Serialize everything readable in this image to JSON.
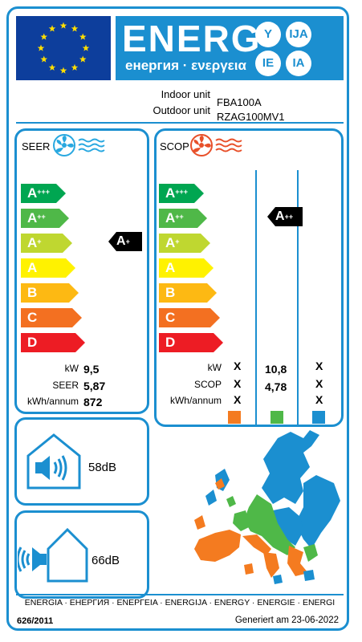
{
  "header": {
    "energy_word": "ENERG",
    "energy_sub": "енергия · ενεργεια",
    "badges": [
      "Y",
      "IJA",
      "IE",
      "IA"
    ]
  },
  "unit": {
    "indoor_label": "Indoor unit",
    "indoor_model": "FBA100A",
    "outdoor_label": "Outdoor unit",
    "outdoor_model": "RZAG100MV1"
  },
  "energy_classes": [
    {
      "label": "A",
      "sup": "+++",
      "color": "#00a651"
    },
    {
      "label": "A",
      "sup": "++",
      "color": "#4fb848"
    },
    {
      "label": "A",
      "sup": "+",
      "color": "#bfd730"
    },
    {
      "label": "A",
      "sup": "",
      "color": "#fff200"
    },
    {
      "label": "B",
      "sup": "",
      "color": "#fdb913"
    },
    {
      "label": "C",
      "sup": "",
      "color": "#f37021"
    },
    {
      "label": "D",
      "sup": "",
      "color": "#ed1c24"
    }
  ],
  "seer": {
    "title": "SEER",
    "rating": {
      "label": "A",
      "sup": "+"
    },
    "rows": [
      {
        "label": "kW",
        "value": "9,5"
      },
      {
        "label": "SEER",
        "value": "5,87"
      },
      {
        "label": "kWh/annum",
        "value": "872"
      }
    ]
  },
  "scop": {
    "title": "SCOP",
    "rating": {
      "label": "A",
      "sup": "++"
    },
    "row_labels": [
      "kW",
      "SCOP",
      "kWh/annum"
    ],
    "col_colder": [
      "X",
      "X",
      "X"
    ],
    "col_average": [
      "10,8",
      "4,78",
      ""
    ],
    "col_warmer": [
      "X",
      "X",
      "X"
    ],
    "zone_colors": [
      "#f47b20",
      "#4fb848",
      "#1b8fd0"
    ]
  },
  "noise": {
    "indoor": "58dB",
    "outdoor": "66dB"
  },
  "footer": {
    "languages": "ENERGIA · ЕНЕРГИЯ · ΕΝΕΡΓΕΙΑ · ENERGIJA · ENERGY · ENERGIE · ENERGI",
    "regulation": "626/2011",
    "generated": "Generiert am 23-06-2022"
  },
  "colors": {
    "brand_blue": "#1b8fd0",
    "eu_blue": "#0d3e9c",
    "star_yellow": "#ffde00"
  }
}
